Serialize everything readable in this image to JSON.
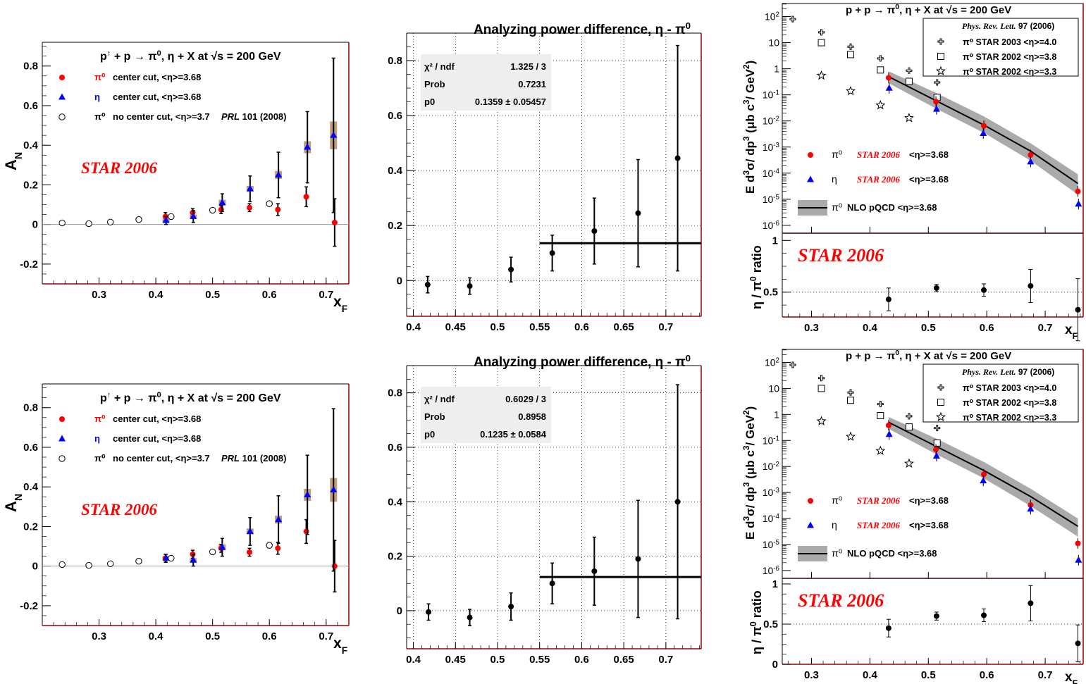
{
  "colors": {
    "red": "#ff0000",
    "blue": "#0000ff",
    "black": "#000000",
    "frame": "#990000",
    "band": "#aaaaaa",
    "syst": "#b8916c",
    "statsbg": "#eeeeee",
    "zero": "#999999"
  },
  "text": {
    "an_title": "p↑ + p → π⁰, η + X at √s = 200 GeV",
    "cs_title": "p + p → π⁰, η + X at √s = 200 GeV",
    "diff_title": "Analyzing power difference, η - π⁰",
    "star2006": "STAR 2006",
    "an_ylabel": "A_N",
    "xf_label": "x_F",
    "cs_ylabel": "E d³σ/dp³ (μb c³/ GeV²)",
    "ratio_ylabel": "η / π⁰ ratio",
    "an_leg_pi0_sym": "π⁰",
    "an_leg_pi0_text": "center cut, <η>=3.68",
    "an_leg_eta_sym": "η",
    "an_leg_eta_text": "center cut, <η>=3.68",
    "an_leg_open_sym": "π⁰",
    "an_leg_open_text": "no center cut, <η>=3.7",
    "an_leg_open_ref": "PRL 101 (2008)",
    "prl_ref": "Phys. Rev. Lett. 97 (2006)",
    "leg_2003": "π⁰  STAR 2003  <η>=4.0",
    "leg_2002a": "π⁰  STAR 2002  <η>=3.8",
    "leg_2002b": "π⁰  STAR 2002  <η>=3.3",
    "cs_leg_pi0_sym": "π⁰",
    "cs_leg_eta_sym": "η",
    "cs_leg_star": "STAR 2006",
    "cs_leg_mean": "<η>=3.68",
    "cs_leg_nlo_sym": "π⁰",
    "cs_leg_nlo": "NLO pQCD  <η>=3.68",
    "stats_chi2": "χ² / ndf",
    "stats_prob": "Prob",
    "stats_p0": "p0"
  },
  "chart_data": [
    {
      "id": "an_top",
      "type": "scatter",
      "title": "p↑ + p → π⁰, η + X at √s = 200 GeV",
      "xlabel": "x_F",
      "ylabel": "A_N",
      "xlim": [
        0.2,
        0.74
      ],
      "ylim": [
        -0.3,
        0.92
      ],
      "xticks": [
        0.3,
        0.4,
        0.5,
        0.6,
        0.7
      ],
      "yticks": [
        -0.2,
        0,
        0.2,
        0.4,
        0.6,
        0.8
      ],
      "series": [
        {
          "name": "π⁰ center cut, <η>=3.68",
          "color": "red",
          "marker": "circle",
          "x": [
            0.417,
            0.465,
            0.515,
            0.565,
            0.615,
            0.665,
            0.715
          ],
          "y": [
            0.04,
            0.06,
            0.075,
            0.085,
            0.075,
            0.14,
            0.01
          ],
          "err": [
            0.02,
            0.02,
            0.02,
            0.02,
            0.03,
            0.05,
            0.12
          ]
        },
        {
          "name": "η center cut, <η>=3.68",
          "color": "blue",
          "marker": "triangle",
          "x": [
            0.418,
            0.466,
            0.517,
            0.566,
            0.616,
            0.667,
            0.713
          ],
          "y": [
            0.02,
            0.04,
            0.11,
            0.18,
            0.25,
            0.39,
            0.45
          ],
          "err": [
            0.02,
            0.03,
            0.045,
            0.065,
            0.115,
            0.18,
            0.39
          ],
          "syst": [
            0.01,
            0.01,
            0.015,
            0.015,
            0.02,
            0.03,
            0.07
          ]
        },
        {
          "name": "π⁰ no center cut, <η>=3.7 PRL 101 (2008)",
          "color": "black",
          "marker": "open",
          "x": [
            0.235,
            0.282,
            0.32,
            0.37,
            0.427,
            0.5,
            0.6
          ],
          "y": [
            0.008,
            0.004,
            0.012,
            0.025,
            0.04,
            0.072,
            0.105
          ],
          "err": [
            0.003,
            0.003,
            0.004,
            0.005,
            0.006,
            0.008,
            0.012
          ]
        }
      ]
    },
    {
      "id": "an_bot",
      "type": "scatter",
      "title": "p↑ + p → π⁰, η + X at √s = 200 GeV",
      "xlabel": "x_F",
      "ylabel": "A_N",
      "xlim": [
        0.2,
        0.74
      ],
      "ylim": [
        -0.3,
        0.92
      ],
      "xticks": [
        0.3,
        0.4,
        0.5,
        0.6,
        0.7
      ],
      "yticks": [
        -0.2,
        0,
        0.2,
        0.4,
        0.6,
        0.8
      ],
      "series": [
        {
          "name": "π⁰ center cut, <η>=3.68",
          "color": "red",
          "marker": "circle",
          "x": [
            0.417,
            0.465,
            0.515,
            0.565,
            0.615,
            0.665,
            0.715
          ],
          "y": [
            0.04,
            0.06,
            0.09,
            0.07,
            0.09,
            0.175,
            0.0
          ],
          "err": [
            0.02,
            0.02,
            0.02,
            0.02,
            0.03,
            0.06,
            0.13
          ]
        },
        {
          "name": "η center cut, <η>=3.68",
          "color": "blue",
          "marker": "triangle",
          "x": [
            0.418,
            0.466,
            0.517,
            0.566,
            0.616,
            0.667,
            0.713
          ],
          "y": [
            0.04,
            0.03,
            0.095,
            0.175,
            0.235,
            0.36,
            0.385
          ],
          "err": [
            0.02,
            0.03,
            0.045,
            0.07,
            0.12,
            0.2,
            0.41
          ],
          "syst": [
            0.01,
            0.01,
            0.015,
            0.015,
            0.02,
            0.03,
            0.06
          ]
        },
        {
          "name": "π⁰ no center cut, <η>=3.7 PRL 101 (2008)",
          "color": "black",
          "marker": "open",
          "x": [
            0.235,
            0.282,
            0.32,
            0.37,
            0.427,
            0.5,
            0.6
          ],
          "y": [
            0.008,
            0.004,
            0.012,
            0.025,
            0.04,
            0.072,
            0.105
          ],
          "err": [
            0.003,
            0.003,
            0.004,
            0.005,
            0.006,
            0.008,
            0.012
          ]
        }
      ]
    },
    {
      "id": "diff_top",
      "type": "scatter",
      "title": "Analyzing power difference, η - π⁰",
      "xlim": [
        0.392,
        0.742
      ],
      "ylim": [
        -0.13,
        0.9
      ],
      "xticks": [
        0.4,
        0.45,
        0.5,
        0.55,
        0.6,
        0.65,
        0.7
      ],
      "xticklabels": [
        "0.4",
        "0.45",
        "0.5",
        "0.55",
        "0.6",
        "0.65",
        "0.7"
      ],
      "yticks": [
        0,
        0.2,
        0.4,
        0.6,
        0.8
      ],
      "grid": true,
      "series": [
        {
          "name": "",
          "color": "black",
          "marker": "circle",
          "x": [
            0.417,
            0.467,
            0.516,
            0.565,
            0.615,
            0.667,
            0.714
          ],
          "y": [
            -0.015,
            -0.02,
            0.04,
            0.1,
            0.18,
            0.245,
            0.445
          ],
          "err": [
            0.03,
            0.03,
            0.045,
            0.065,
            0.12,
            0.195,
            0.41
          ]
        }
      ],
      "fit": {
        "x": [
          0.55,
          0.742
        ],
        "y": 0.1359
      },
      "stats": {
        "chi2_ndf": "1.325 / 3",
        "prob": "0.7231",
        "p0": "0.1359 ± 0.05457"
      }
    },
    {
      "id": "diff_bot",
      "type": "scatter",
      "title": "Analyzing power difference, η - π⁰",
      "xlim": [
        0.392,
        0.742
      ],
      "ylim": [
        -0.14,
        0.9
      ],
      "xticks": [
        0.4,
        0.45,
        0.5,
        0.55,
        0.6,
        0.65,
        0.7
      ],
      "xticklabels": [
        "0.4",
        "0.45",
        "0.5",
        "0.55",
        "0.6",
        "0.65",
        "0.7"
      ],
      "yticks": [
        0,
        0.2,
        0.4,
        0.6,
        0.8
      ],
      "grid": true,
      "series": [
        {
          "name": "",
          "color": "black",
          "marker": "circle",
          "x": [
            0.418,
            0.467,
            0.516,
            0.565,
            0.615,
            0.667,
            0.714
          ],
          "y": [
            -0.005,
            -0.025,
            0.015,
            0.1,
            0.145,
            0.19,
            0.4
          ],
          "err": [
            0.03,
            0.03,
            0.05,
            0.075,
            0.125,
            0.215,
            0.43
          ]
        }
      ],
      "fit": {
        "x": [
          0.55,
          0.742
        ],
        "y": 0.1235
      },
      "stats": {
        "chi2_ndf": "0.6029 / 3",
        "prob": "0.8958",
        "p0": "0.1235 ± 0.0584"
      }
    },
    {
      "id": "cs_top",
      "type": "scatter",
      "title": "p + p → π⁰, η + X at √s = 200 GeV",
      "xlim": [
        0.25,
        0.765
      ],
      "ylim_log": [
        -6.3,
        2.5
      ],
      "log_y": true,
      "ylabel": "E d³σ/dp³ (μb c³/ GeV²)",
      "ydecades": [
        -6,
        -5,
        -4,
        -3,
        -2,
        -1,
        0,
        1,
        2
      ],
      "series": [
        {
          "name": "π⁰ STAR 2003 <η>=4.0",
          "marker": "cross",
          "x": [
            0.268,
            0.317,
            0.367,
            0.418,
            0.467,
            0.515
          ],
          "y": [
            80,
            25,
            7,
            2.5,
            0.85,
            0.3
          ]
        },
        {
          "name": "π⁰ STAR 2002 <η>=3.8",
          "marker": "square",
          "x": [
            0.317,
            0.367,
            0.418,
            0.467,
            0.515
          ],
          "y": [
            10,
            3.5,
            0.9,
            0.33,
            0.08
          ]
        },
        {
          "name": "π⁰ STAR 2002 <η>=3.3",
          "marker": "star",
          "x": [
            0.317,
            0.367,
            0.418,
            0.467
          ],
          "y": [
            0.55,
            0.14,
            0.04,
            0.013
          ]
        },
        {
          "name": "π⁰ STAR 2006 <η>=3.68",
          "color": "red",
          "marker": "circle",
          "x": [
            0.432,
            0.513,
            0.595,
            0.675,
            0.756
          ],
          "y": [
            0.45,
            0.055,
            0.0065,
            0.0005,
            2e-05
          ]
        },
        {
          "name": "η STAR 2006 <η>=3.68",
          "color": "blue",
          "marker": "triangle",
          "x": [
            0.433,
            0.514,
            0.594,
            0.675,
            0.757
          ],
          "y": [
            0.18,
            0.028,
            0.0033,
            0.00027,
            6.5e-06
          ]
        }
      ],
      "nlo": {
        "x": [
          0.432,
          0.513,
          0.595,
          0.675,
          0.756
        ],
        "y": [
          0.5,
          0.06,
          0.007,
          0.0007,
          4e-05
        ],
        "lo": [
          0.28,
          0.03,
          0.0035,
          0.0003,
          1.5e-05
        ],
        "hi": [
          0.8,
          0.12,
          0.015,
          0.0014,
          9e-05
        ]
      }
    },
    {
      "id": "ratio_top",
      "type": "scatter",
      "xlim": [
        0.25,
        0.765
      ],
      "ylim": [
        0.26,
        1.07
      ],
      "xticks": [
        0.3,
        0.4,
        0.5,
        0.6,
        0.7
      ],
      "yticks": [
        0.5,
        1
      ],
      "ylabel": "η / π⁰ ratio",
      "series": [
        {
          "name": "",
          "color": "black",
          "marker": "circle",
          "x": [
            0.432,
            0.514,
            0.595,
            0.675,
            0.756
          ],
          "y": [
            0.43,
            0.54,
            0.52,
            0.56,
            0.33
          ],
          "err": [
            0.11,
            0.035,
            0.06,
            0.16,
            0.3
          ]
        }
      ]
    },
    {
      "id": "cs_bot",
      "type": "scatter",
      "title": "p + p → π⁰, η + X at √s = 200 GeV",
      "xlim": [
        0.25,
        0.765
      ],
      "ylim_log": [
        -6.3,
        2.5
      ],
      "log_y": true,
      "ylabel": "E d³σ/dp³ (μb c³/ GeV²)",
      "ydecades": [
        -6,
        -5,
        -4,
        -3,
        -2,
        -1,
        0,
        1,
        2
      ],
      "series": [
        {
          "name": "π⁰ STAR 2003 <η>=4.0",
          "marker": "cross",
          "x": [
            0.268,
            0.317,
            0.367,
            0.418,
            0.467,
            0.515
          ],
          "y": [
            80,
            25,
            7,
            2.5,
            0.85,
            0.3
          ]
        },
        {
          "name": "π⁰ STAR 2002 <η>=3.8",
          "marker": "square",
          "x": [
            0.317,
            0.367,
            0.418,
            0.467,
            0.515
          ],
          "y": [
            10,
            3.5,
            0.9,
            0.33,
            0.08
          ]
        },
        {
          "name": "π⁰ STAR 2002 <η>=3.3",
          "marker": "star",
          "x": [
            0.317,
            0.367,
            0.418,
            0.467
          ],
          "y": [
            0.55,
            0.14,
            0.04,
            0.013
          ]
        },
        {
          "name": "π⁰ STAR 2006 <η>=3.68",
          "color": "red",
          "marker": "circle",
          "x": [
            0.432,
            0.513,
            0.595,
            0.675,
            0.756
          ],
          "y": [
            0.38,
            0.045,
            0.005,
            0.00033,
            1.1e-05
          ]
        },
        {
          "name": "η STAR 2006 <η>=3.68",
          "color": "blue",
          "marker": "triangle",
          "x": [
            0.433,
            0.514,
            0.594,
            0.675,
            0.757
          ],
          "y": [
            0.17,
            0.025,
            0.0028,
            0.00023,
            2.5e-06
          ]
        }
      ],
      "nlo": {
        "x": [
          0.432,
          0.513,
          0.595,
          0.675,
          0.756
        ],
        "y": [
          0.5,
          0.06,
          0.007,
          0.0007,
          5e-05
        ],
        "lo": [
          0.28,
          0.03,
          0.0035,
          0.0003,
          2e-05
        ],
        "hi": [
          0.8,
          0.12,
          0.015,
          0.0014,
          0.0001
        ]
      }
    },
    {
      "id": "ratio_bot",
      "type": "scatter",
      "xlim": [
        0.25,
        0.765
      ],
      "ylim": [
        0.0,
        1.07
      ],
      "xticks": [
        0.3,
        0.4,
        0.5,
        0.6,
        0.7
      ],
      "yticks": [
        0,
        0.5,
        1
      ],
      "ylabel": "η / π⁰ ratio",
      "series": [
        {
          "name": "",
          "color": "black",
          "marker": "circle",
          "x": [
            0.432,
            0.514,
            0.595,
            0.675,
            0.756
          ],
          "y": [
            0.45,
            0.6,
            0.61,
            0.76,
            0.26
          ],
          "err": [
            0.11,
            0.05,
            0.08,
            0.22,
            0.23
          ]
        }
      ]
    }
  ]
}
